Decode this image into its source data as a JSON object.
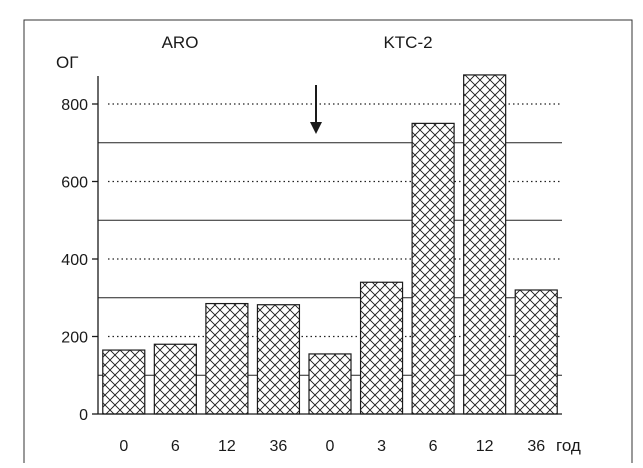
{
  "chart_data": {
    "type": "bar",
    "title": "",
    "group_labels": [
      "ARO",
      "KTC-2"
    ],
    "ylabel": "ОГ",
    "xlabel": "год",
    "categories": [
      "0",
      "6",
      "12",
      "36",
      "0",
      "3",
      "6",
      "12",
      "36"
    ],
    "values": [
      165,
      180,
      285,
      282,
      155,
      340,
      750,
      875,
      320
    ],
    "ylim": [
      0,
      900
    ],
    "yticks": [
      0,
      200,
      400,
      600,
      800
    ],
    "solid_gridlines": [
      100,
      300,
      500,
      700
    ],
    "dotted_gridlines": [
      200,
      400,
      600,
      800
    ],
    "annotation": "downward-arrow",
    "bar_fill": "crosshatch",
    "bar_color": "#ffffff",
    "line_color": "#1a1a1a"
  }
}
